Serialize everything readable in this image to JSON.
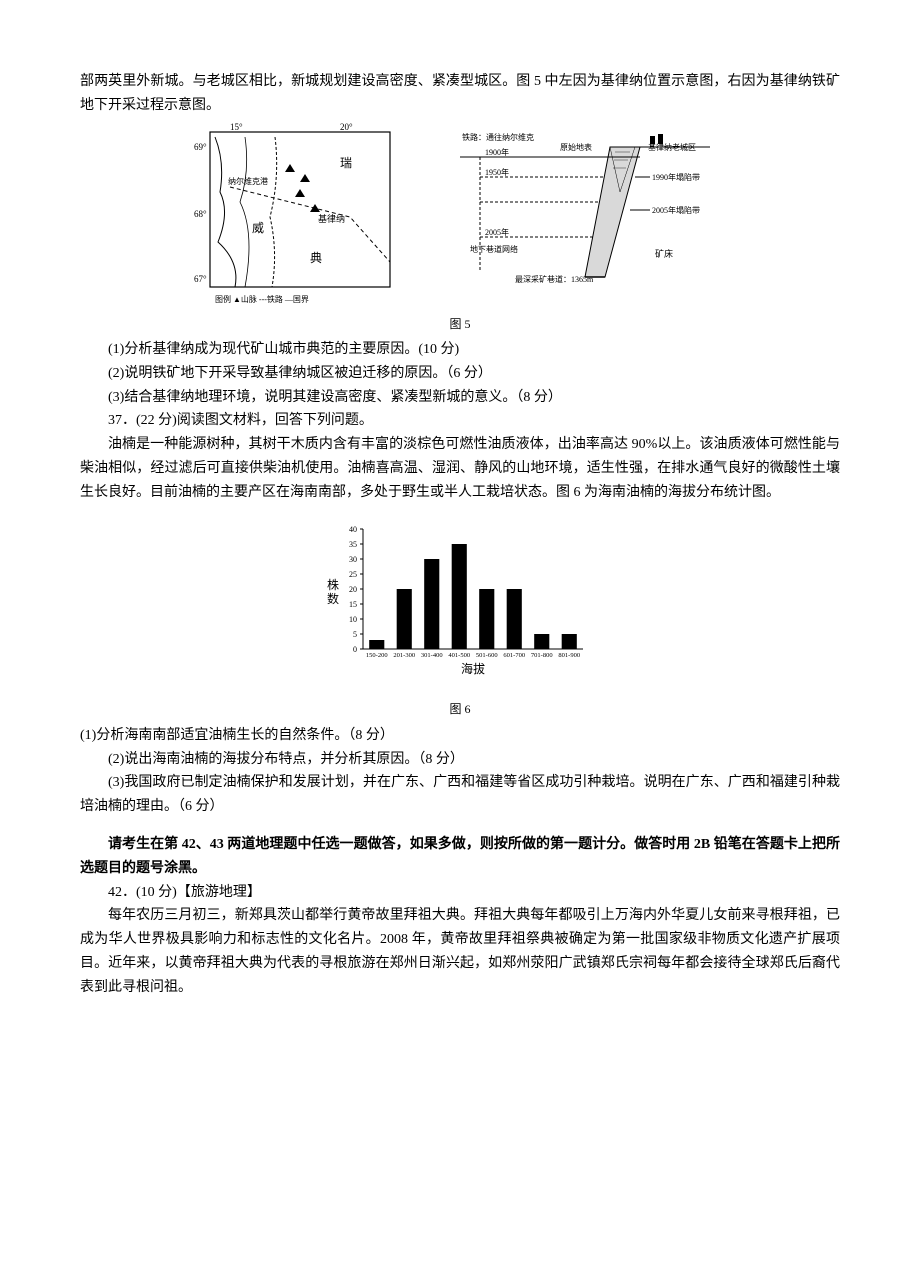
{
  "intro": {
    "p1": "部两英里外新城。与老城区相比，新城规划建设高密度、紧凑型城区。图 5 中左因为基律纳位置示意图，右因为基律纳铁矿地下开采过程示意图。"
  },
  "fig5": {
    "caption": "图 5",
    "map": {
      "lon_ticks": [
        "15°",
        "20°"
      ],
      "lat_ticks": [
        "69°",
        "68°",
        "67°"
      ],
      "labels": {
        "narvik": "纳尔维克港",
        "sweden": "瑞",
        "norway": "威",
        "kiruna": "基律纳",
        "dian": "典",
        "legend": "图例 ▲山脉  ---铁路  —国界"
      },
      "stroke": "#000000",
      "bg": "#ffffff"
    },
    "section": {
      "labels": {
        "railway": "铁路：通往纳尔维克",
        "y1900": "1900年",
        "y1950": "1950年",
        "y2005a": "2005年",
        "tunnels": "地下巷道网络",
        "original": "原始地表",
        "oldtown": "基律纳老城区",
        "zone1990": "1990年塌陷带",
        "zone2005": "2005年塌陷带",
        "ore": "矿床",
        "deepest": "最深采矿巷道：1365m"
      },
      "stroke": "#000000"
    }
  },
  "q36": {
    "q1": "(1)分析基律纳成为现代矿山城市典范的主要原因。(10 分)",
    "q2": "(2)说明铁矿地下开采导致基律纳城区被迫迁移的原因。（6 分）",
    "q3": "(3)结合基律纳地理环境，说明其建设高密度、紧凑型新城的意义。（8 分）"
  },
  "q37": {
    "title": "37．(22 分)阅读图文材料，回答下列问题。",
    "p1": "油楠是一种能源树种，其树干木质内含有丰富的淡棕色可燃性油质液体，出油率高达 90%以上。该油质液体可燃性能与柴油相似，经过滤后可直接供柴油机使用。油楠喜高温、湿润、静风的山地环境，适生性强，在排水通气良好的微酸性土壤生长良好。目前油楠的主要产区在海南南部，多处于野生或半人工栽培状态。图 6 为海南油楠的海拔分布统计图。"
  },
  "fig6": {
    "caption": "图 6",
    "type": "bar",
    "ylabel": "株数",
    "xlabel": "海拔",
    "categories": [
      "150-200",
      "201-300",
      "301-400",
      "401-500",
      "501-600",
      "601-700",
      "701-800",
      "801-900"
    ],
    "values": [
      3,
      20,
      30,
      35,
      20,
      20,
      5,
      5
    ],
    "ylim": [
      0,
      40
    ],
    "ytick_step": 5,
    "bar_color": "#000000",
    "axis_color": "#000000",
    "bg": "#ffffff",
    "label_fontsize": 8,
    "axis_label_fontsize": 12
  },
  "q37sub": {
    "q1": "(1)分析海南南部适宜油楠生长的自然条件。（8 分）",
    "q2": "(2)说出海南油楠的海拔分布特点，并分析其原因。（8 分）",
    "q3": "(3)我国政府已制定油楠保护和发展计划，并在广东、广西和福建等省区成功引种栽培。说明在广东、广西和福建引种栽培油楠的理由。（6 分）"
  },
  "choice": {
    "p1": "请考生在第 42、43 两道地理题中任选一题做答，如果多做，则按所做的第一题计分。做答时用 2B 铅笔在答题卡上把所选题目的题号涂黑。"
  },
  "q42": {
    "title": "42．(10 分)【旅游地理】",
    "p1": "每年农历三月初三，新郑具茨山都举行黄帝故里拜祖大典。拜祖大典每年都吸引上万海内外华夏儿女前来寻根拜祖，已成为华人世界极具影响力和标志性的文化名片。2008 年，黄帝故里拜祖祭典被确定为第一批国家级非物质文化遗产扩展项目。近年来，以黄帝拜祖大典为代表的寻根旅游在郑州日渐兴起，如郑州荥阳广武镇郑氏宗祠每年都会接待全球郑氏后裔代表到此寻根问祖。"
  }
}
